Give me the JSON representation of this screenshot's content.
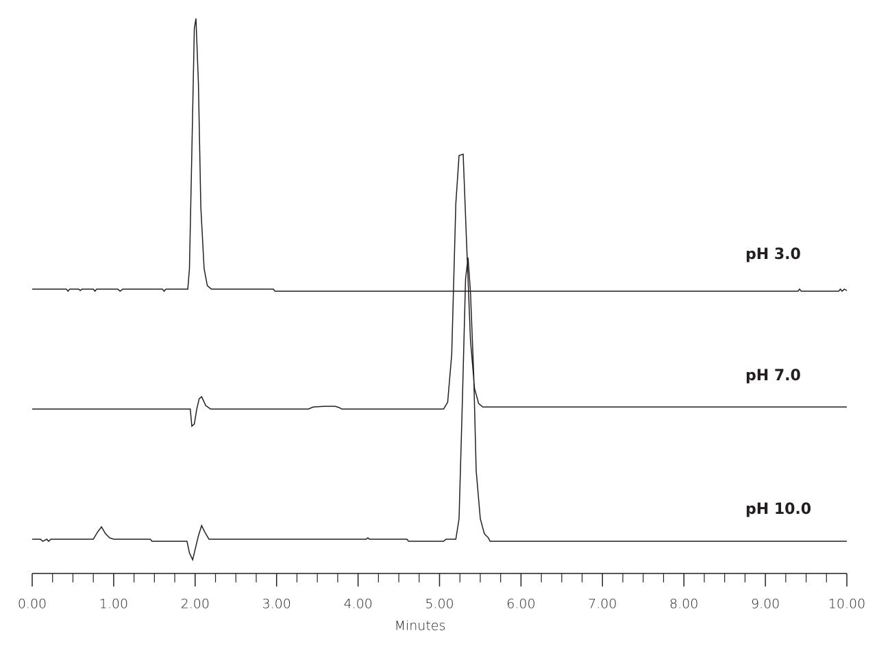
{
  "chart_data": {
    "type": "line",
    "xlabel": "Minutes",
    "color": "#231f20",
    "xlim": [
      0,
      10
    ],
    "xticks": [
      {
        "value": 0,
        "label": "0.00"
      },
      {
        "value": 1,
        "label": "1.00"
      },
      {
        "value": 2,
        "label": "2.00"
      },
      {
        "value": 3,
        "label": "3.00"
      },
      {
        "value": 4,
        "label": "4.00"
      },
      {
        "value": 5,
        "label": "5.00"
      },
      {
        "value": 6,
        "label": "6.00"
      },
      {
        "value": 7,
        "label": "7.00"
      },
      {
        "value": 8,
        "label": "8.00"
      },
      {
        "value": 9,
        "label": "9.00"
      },
      {
        "value": 10,
        "label": "10.00"
      }
    ],
    "xticks_minor": [
      0.25,
      0.5,
      0.75,
      1.25,
      1.5,
      1.75,
      2.25,
      2.5,
      2.75,
      3.25,
      3.5,
      3.75,
      4.25,
      4.5,
      4.75,
      5.25,
      5.5,
      5.75,
      6.25,
      6.5,
      6.75,
      7.25,
      7.5,
      7.75,
      8.25,
      8.5,
      8.75,
      9.25,
      9.5,
      9.75
    ],
    "series": [
      {
        "name": "pH 3.0",
        "x": [
          0,
          0.42,
          0.44,
          0.46,
          0.57,
          0.59,
          0.61,
          0.75,
          0.77,
          0.79,
          1.05,
          1.08,
          1.11,
          1.6,
          1.62,
          1.64,
          1.91,
          1.93,
          1.96,
          1.99,
          2.01,
          2.04,
          2.07,
          2.11,
          2.15,
          2.2,
          2.96,
          2.98,
          9.4,
          9.42,
          9.44,
          9.9,
          9.92,
          9.94,
          9.97,
          10
        ],
        "values": [
          0,
          0,
          -3,
          0,
          0,
          -2,
          0,
          0,
          -3,
          0,
          0,
          -3,
          0,
          0,
          -3,
          0,
          0,
          30,
          200,
          380,
          395,
          300,
          120,
          30,
          5,
          0,
          0,
          -3,
          -3,
          0,
          -3,
          -3,
          0,
          -3,
          0,
          -2
        ]
      },
      {
        "name": "pH 7.0",
        "x": [
          0,
          1.94,
          1.96,
          1.99,
          2.02,
          2.05,
          2.08,
          2.13,
          2.19,
          3.39,
          3.45,
          3.6,
          3.72,
          3.77,
          3.8,
          5.05,
          5.1,
          5.15,
          5.2,
          5.24,
          5.29,
          5.33,
          5.38,
          5.43,
          5.48,
          5.53,
          10
        ],
        "values": [
          0,
          0,
          -25,
          -22,
          0,
          15,
          18,
          5,
          0,
          0,
          3,
          4,
          4,
          2,
          0,
          0,
          10,
          80,
          300,
          370,
          372,
          250,
          100,
          30,
          8,
          3,
          3
        ]
      },
      {
        "name": "pH 10.0",
        "x": [
          0,
          0.1,
          0.13,
          0.18,
          0.2,
          0.23,
          0.75,
          0.8,
          0.85,
          0.9,
          0.95,
          1.0,
          1.45,
          1.47,
          1.9,
          1.93,
          1.97,
          2.0,
          2.04,
          2.08,
          2.12,
          2.17,
          4.1,
          4.12,
          4.14,
          4.6,
          4.62,
          5.05,
          5.08,
          5.2,
          5.24,
          5.28,
          5.32,
          5.35,
          5.38,
          5.42,
          5.45,
          5.5,
          5.55,
          5.6,
          5.62,
          10
        ],
        "values": [
          0,
          0,
          -3,
          0,
          -3,
          0,
          0,
          10,
          18,
          8,
          2,
          0,
          0,
          -3,
          -3,
          -20,
          -30,
          -15,
          5,
          20,
          10,
          0,
          0,
          2,
          0,
          0,
          -3,
          -3,
          0,
          0,
          30,
          200,
          380,
          411,
          360,
          240,
          100,
          30,
          8,
          2,
          -3,
          -3
        ]
      }
    ]
  }
}
